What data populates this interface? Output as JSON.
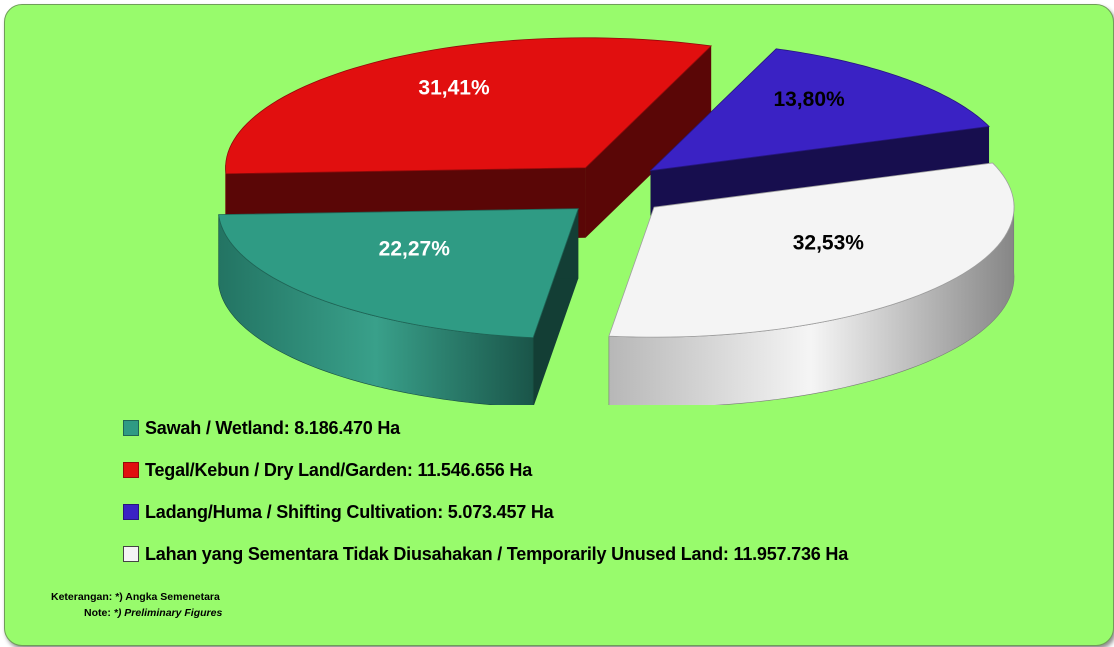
{
  "chart_data": {
    "type": "pie",
    "title": "",
    "slices": [
      {
        "label": "Sawah / Wetland: 8.186.470 Ha",
        "value": 8186470,
        "percent_label": "22,27%",
        "color": "#2f9b84",
        "label_color": "#ffffff"
      },
      {
        "label": "Tegal/Kebun / Dry Land/Garden: 11.546.656 Ha",
        "value": 11546656,
        "percent_label": "31,41%",
        "color": "#e10f0f",
        "label_color": "#ffffff"
      },
      {
        "label": "Ladang/Huma / Shifting Cultivation: 5.073.457 Ha",
        "value": 5073457,
        "percent_label": "13,80%",
        "color": "#3a22c4",
        "label_color": "#000000"
      },
      {
        "label": "Lahan yang Sementara Tidak Diusahakan / Temporarily Unused Land: 11.957.736 Ha",
        "value": 11957736,
        "percent_label": "32,53%",
        "color": "#f4f4f4",
        "label_color": "#000000"
      }
    ],
    "style": "3d-exploded",
    "legend_position": "bottom-left"
  },
  "footnote": {
    "line1_label": "Keterangan:",
    "line1_text": "*) Angka Semenetara",
    "line2_label": "Note:",
    "line2_text": "*) Preliminary Figures"
  },
  "colors": {
    "background": "#98fb6c"
  }
}
